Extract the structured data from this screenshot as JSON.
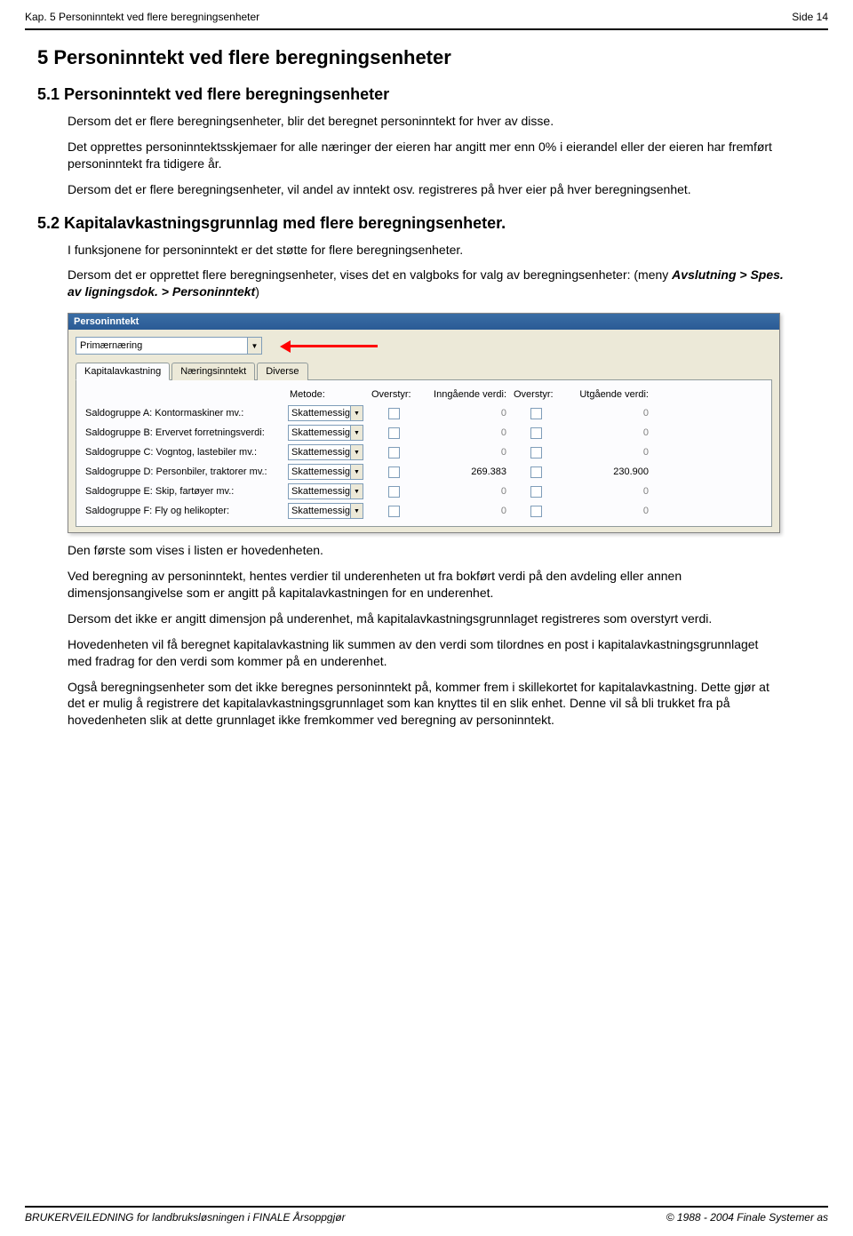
{
  "header": {
    "chapter_ref": "Kap. 5 Personinntekt ved flere beregningsenheter",
    "page_ref": "Side 14"
  },
  "h1": "5  Personinntekt ved flere beregningsenheter",
  "sec51": {
    "heading": "5.1  Personinntekt ved flere beregningsenheter",
    "p1": "Dersom det er flere beregningsenheter, blir det beregnet personinntekt for hver av disse.",
    "p2": "Det opprettes personinntektsskjemaer for alle næringer der eieren har angitt mer enn 0% i eierandel eller der eieren har fremført personinntekt fra tidigere år.",
    "p3": "Dersom det er flere beregningsenheter, vil andel av inntekt osv. registreres på hver eier på hver beregningsenhet."
  },
  "sec52": {
    "heading": "5.2  Kapitalavkastningsgrunnlag med flere beregningsenheter.",
    "p1": "I funksjonene for personinntekt er det støtte for flere beregningsenheter.",
    "p2a": "Dersom det er opprettet flere beregningsenheter, vises det en valgboks for valg av beregningsenheter: (meny ",
    "p2b": "Avslutning > Spes. av ligningsdok. > Personinntekt",
    "p2c": ")"
  },
  "win": {
    "title": "Personinntekt",
    "combo_value": "Primærnæring",
    "tabs": [
      "Kapitalavkastning",
      "Næringsinntekt",
      "Diverse"
    ],
    "columns": [
      "",
      "Metode:",
      "Overstyr:",
      "Inngående verdi:",
      "Overstyr:",
      "Utgående verdi:"
    ],
    "rows": [
      {
        "label": "Saldogruppe A: Kontormaskiner mv.:",
        "method": "Skattemessig",
        "in": "0",
        "out": "0"
      },
      {
        "label": "Saldogruppe B: Ervervet forretningsverdi:",
        "method": "Skattemessig",
        "in": "0",
        "out": "0"
      },
      {
        "label": "Saldogruppe C: Vogntog, lastebiler mv.:",
        "method": "Skattemessig",
        "in": "0",
        "out": "0"
      },
      {
        "label": "Saldogruppe D: Personbiler, traktorer mv.:",
        "method": "Skattemessig",
        "in": "269.383",
        "out": "230.900"
      },
      {
        "label": "Saldogruppe E: Skip, fartøyer mv.:",
        "method": "Skattemessig",
        "in": "0",
        "out": "0"
      },
      {
        "label": "Saldogruppe F: Fly og helikopter:",
        "method": "Skattemessig",
        "in": "0",
        "out": "0"
      }
    ]
  },
  "after": {
    "p1": "Den første som vises i listen er hovedenheten.",
    "p2": "Ved beregning av personinntekt, hentes verdier til underenheten ut fra bokført verdi på den avdeling eller annen dimensjonsangivelse som er angitt på kapitalavkastningen for en underenhet.",
    "p3": "Dersom det ikke er angitt dimensjon på underenhet, må kapitalavkastningsgrunnlaget registreres som overstyrt verdi.",
    "p4": "Hovedenheten vil få beregnet kapitalavkastning lik summen av den verdi som tilordnes en post i kapitalavkastningsgrunnlaget med fradrag for den verdi som kommer på en underenhet.",
    "p5": "Også beregningsenheter som det ikke beregnes personinntekt på, kommer frem i skillekortet for kapitalavkastning. Dette gjør at det er mulig å registrere det kapitalavkastningsgrunnlaget som kan knyttes til en slik enhet. Denne vil så bli trukket fra på hovedenheten slik at dette grunnlaget ikke fremkommer ved beregning av personinntekt."
  },
  "footer": {
    "left": "BRUKERVEILEDNING for landbruksløsningen i FINALE Årsoppgjør",
    "right": "© 1988 - 2004 Finale Systemer as"
  }
}
